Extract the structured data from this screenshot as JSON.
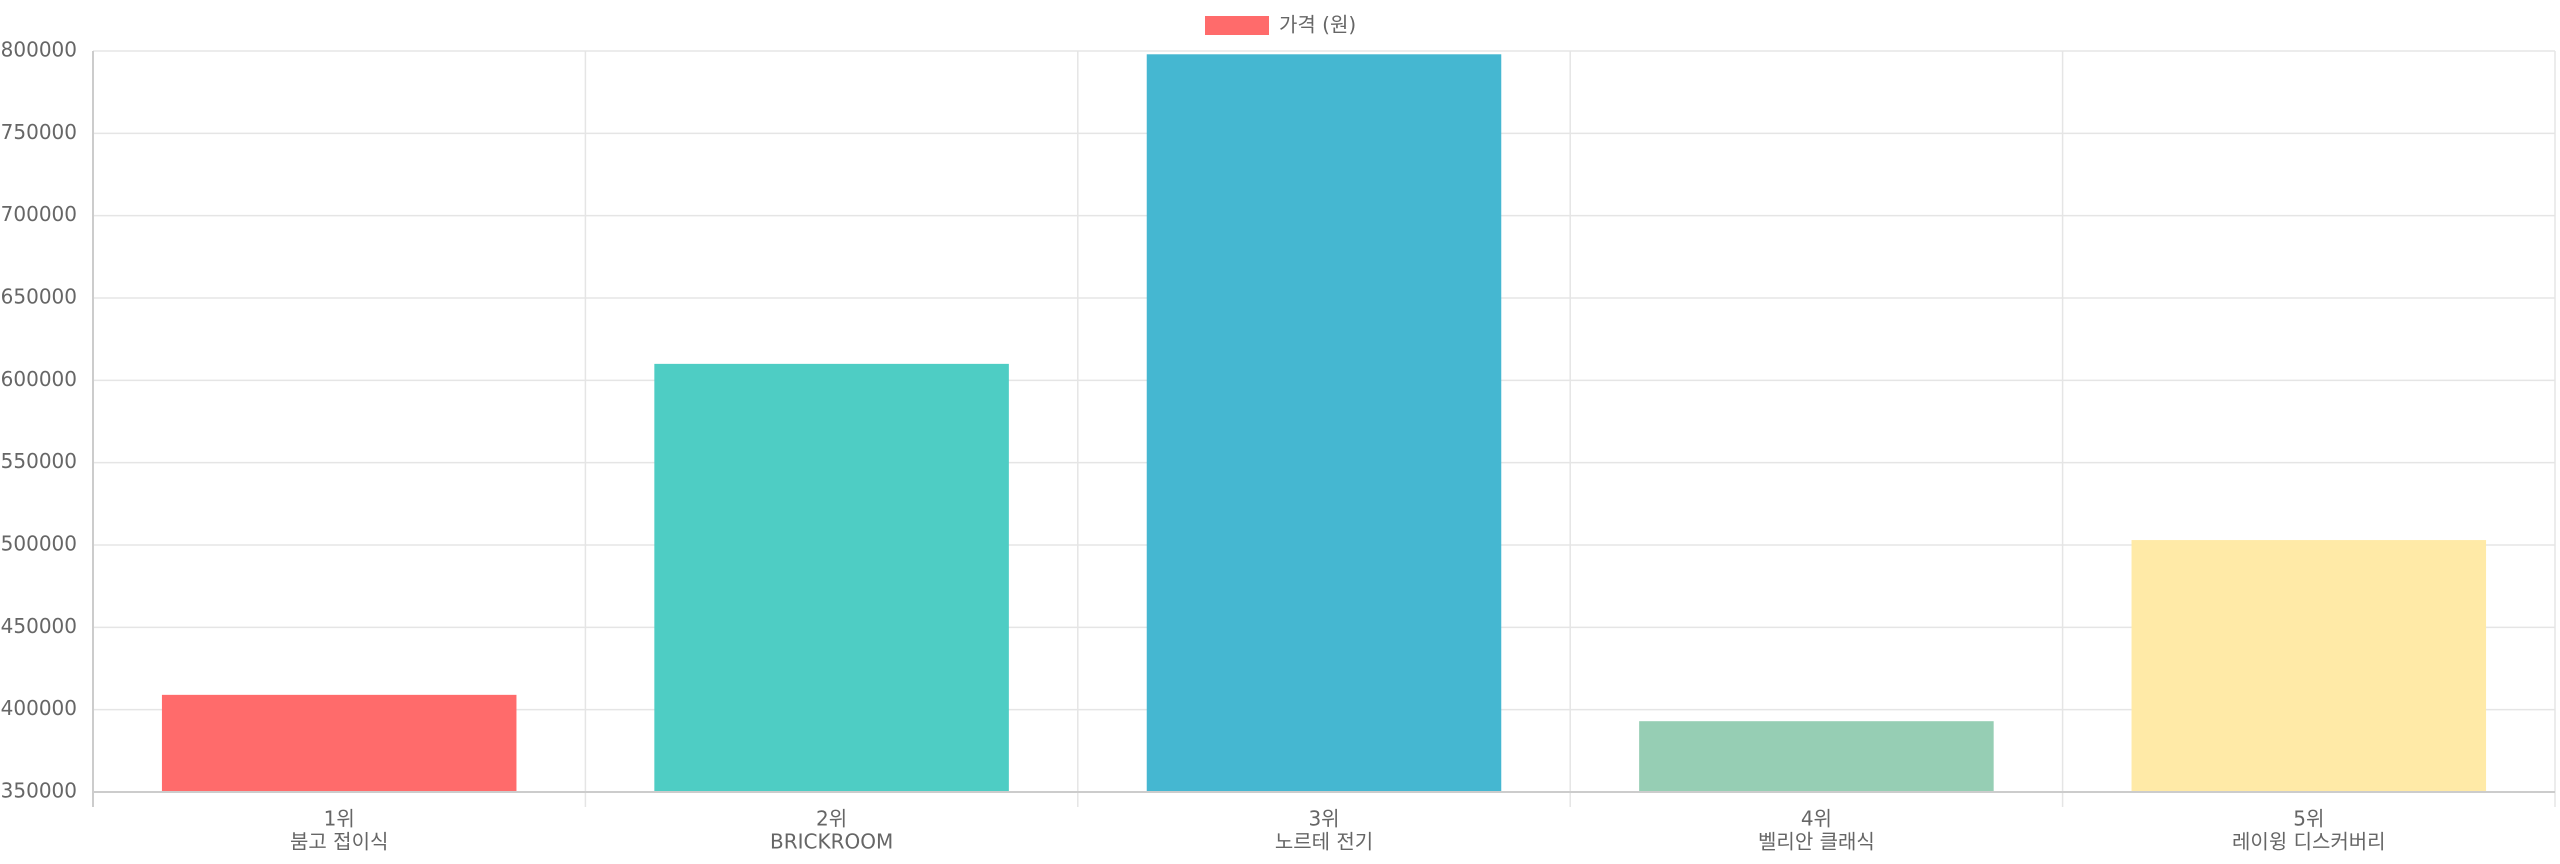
{
  "chart_data": {
    "type": "bar",
    "legend": "가격 (원)",
    "legend_color": "#ff6b6b",
    "categories": [
      [
        "1위",
        "붐고 접이식"
      ],
      [
        "2위",
        "BRICKROOM"
      ],
      [
        "3위",
        "노르테 전기"
      ],
      [
        "4위",
        "벨리안 클래식"
      ],
      [
        "5위",
        "레이윙 디스커버리"
      ]
    ],
    "values": [
      409000,
      610000,
      798000,
      393000,
      503000
    ],
    "colors": [
      "#ff6b6b",
      "#4ecdc4",
      "#45b7d1",
      "#96ceb4",
      "#ffeaa7"
    ],
    "ylim": [
      350000,
      800000
    ],
    "yticks": [
      350000,
      400000,
      450000,
      500000,
      550000,
      600000,
      650000,
      700000,
      750000,
      800000
    ],
    "grid": true
  }
}
